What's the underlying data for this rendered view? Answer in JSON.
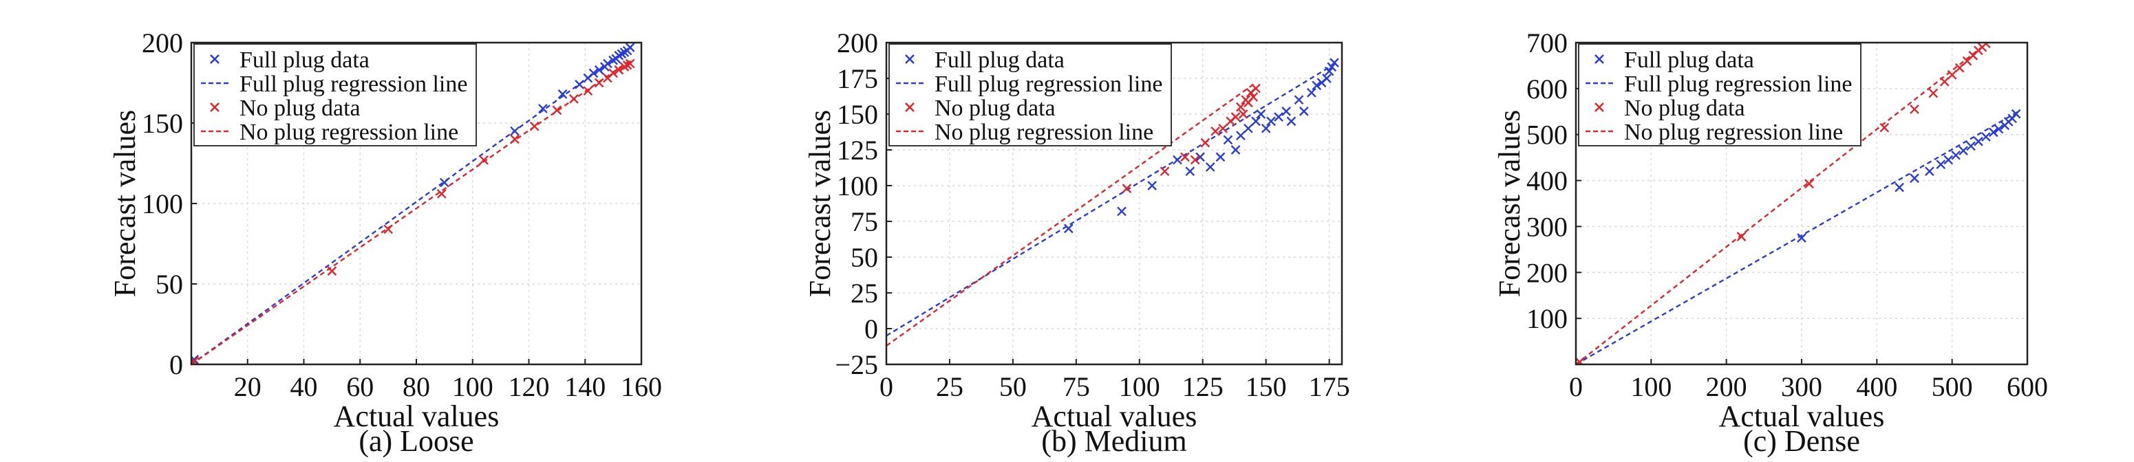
{
  "chart_data": [
    {
      "type": "scatter",
      "caption": "(a) Loose",
      "xlabel": "Actual values",
      "ylabel": "Forecast values",
      "xlim": [
        0,
        160
      ],
      "ylim": [
        0,
        200
      ],
      "xticks": [
        20,
        40,
        60,
        80,
        100,
        120,
        140,
        160
      ],
      "yticks": [
        0,
        50,
        100,
        150,
        200
      ],
      "grid": true,
      "legend_position": "top-left",
      "legend": [
        {
          "label": "Full plug data",
          "kind": "marker",
          "color": "#2a3cd6"
        },
        {
          "label": "Full plug regression line",
          "kind": "line",
          "color": "#2a3cd6"
        },
        {
          "label": "No plug data",
          "kind": "marker",
          "color": "#e0262c"
        },
        {
          "label": "No plug regression line",
          "kind": "line",
          "color": "#e0262c"
        }
      ],
      "series": [
        {
          "name": "Full plug data",
          "kind": "scatter",
          "color": "#2a3cd6",
          "x": [
            1,
            90,
            115,
            125,
            132,
            138,
            141,
            143,
            145,
            147,
            148,
            150,
            151,
            152,
            153,
            154,
            155,
            156
          ],
          "y": [
            3,
            113,
            145,
            159,
            168,
            174,
            178,
            181,
            183,
            185,
            187,
            189,
            190,
            192,
            193,
            194,
            195,
            197
          ]
        },
        {
          "name": "Full plug regression line",
          "kind": "line",
          "color": "#2a3cd6",
          "x": [
            0,
            156
          ],
          "y": [
            0,
            197
          ]
        },
        {
          "name": "No plug data",
          "kind": "scatter",
          "color": "#e0262c",
          "x": [
            1,
            50,
            70,
            89,
            104,
            115,
            122,
            130,
            136,
            141,
            145,
            148,
            150,
            152,
            154,
            155,
            156
          ],
          "y": [
            2,
            58,
            84,
            106,
            127,
            140,
            148,
            158,
            165,
            170,
            175,
            178,
            181,
            183,
            185,
            186,
            187
          ]
        },
        {
          "name": "No plug regression line",
          "kind": "line",
          "color": "#e0262c",
          "x": [
            0,
            156
          ],
          "y": [
            0,
            189
          ]
        }
      ]
    },
    {
      "type": "scatter",
      "caption": "(b) Medium",
      "xlabel": "Actual values",
      "ylabel": "Forecast values",
      "xlim": [
        0,
        180
      ],
      "ylim": [
        -25,
        200
      ],
      "xticks": [
        0,
        25,
        50,
        75,
        100,
        125,
        150,
        175
      ],
      "yticks": [
        -25,
        0,
        25,
        50,
        75,
        100,
        125,
        150,
        175,
        200
      ],
      "grid": true,
      "legend_position": "top-left",
      "legend": [
        {
          "label": "Full plug data",
          "kind": "marker",
          "color": "#2a3cd6"
        },
        {
          "label": "Full plug regression line",
          "kind": "line",
          "color": "#2a3cd6"
        },
        {
          "label": "No plug data",
          "kind": "marker",
          "color": "#e0262c"
        },
        {
          "label": "No plug regression line",
          "kind": "line",
          "color": "#e0262c"
        }
      ],
      "series": [
        {
          "name": "Full plug data",
          "kind": "scatter",
          "color": "#2a3cd6",
          "x": [
            72,
            93,
            105,
            115,
            120,
            124,
            128,
            132,
            135,
            138,
            140,
            143,
            146,
            148,
            150,
            152,
            155,
            158,
            160,
            163,
            165,
            168,
            170,
            172,
            174,
            175,
            176,
            177
          ],
          "y": [
            70,
            82,
            100,
            118,
            110,
            120,
            113,
            120,
            132,
            125,
            135,
            140,
            145,
            150,
            140,
            145,
            148,
            152,
            145,
            160,
            152,
            165,
            170,
            172,
            175,
            180,
            183,
            186
          ],
          "markers": 1
        },
        {
          "name": "Full plug regression line",
          "kind": "line",
          "color": "#2a3cd6",
          "x": [
            0,
            178
          ],
          "y": [
            -5,
            186
          ]
        },
        {
          "name": "No plug data",
          "kind": "scatter",
          "color": "#e0262c",
          "x": [
            95,
            110,
            118,
            122,
            126,
            130,
            133,
            136,
            138,
            140,
            141,
            142,
            143,
            144,
            145,
            146
          ],
          "y": [
            98,
            110,
            120,
            118,
            130,
            138,
            140,
            145,
            148,
            155,
            150,
            160,
            158,
            165,
            162,
            168
          ]
        },
        {
          "name": "No plug regression line",
          "kind": "line",
          "color": "#e0262c",
          "x": [
            0,
            146
          ],
          "y": [
            -12,
            172
          ]
        }
      ]
    },
    {
      "type": "scatter",
      "caption": "(c) Dense",
      "xlabel": "Actual values",
      "ylabel": "Forecast values",
      "xlim": [
        0,
        600
      ],
      "ylim": [
        0,
        700
      ],
      "xticks": [
        0,
        100,
        200,
        300,
        400,
        500,
        600
      ],
      "yticks": [
        100,
        200,
        300,
        400,
        500,
        600,
        700
      ],
      "grid": true,
      "legend_position": "top-left",
      "legend": [
        {
          "label": "Full plug data",
          "kind": "marker",
          "color": "#2a3cd6"
        },
        {
          "label": "Full plug regression line",
          "kind": "line",
          "color": "#2a3cd6"
        },
        {
          "label": "No plug data",
          "kind": "marker",
          "color": "#e0262c"
        },
        {
          "label": "No plug regression line",
          "kind": "line",
          "color": "#e0262c"
        }
      ],
      "series": [
        {
          "name": "Full plug data",
          "kind": "scatter",
          "color": "#2a3cd6",
          "x": [
            5,
            300,
            430,
            450,
            470,
            485,
            495,
            505,
            515,
            525,
            535,
            545,
            555,
            562,
            570,
            575,
            580,
            585
          ],
          "y": [
            5,
            275,
            385,
            405,
            420,
            435,
            445,
            455,
            465,
            475,
            485,
            495,
            505,
            512,
            520,
            528,
            535,
            545
          ]
        },
        {
          "name": "Full plug regression line",
          "kind": "line",
          "color": "#2a3cd6",
          "x": [
            0,
            588
          ],
          "y": [
            0,
            550
          ]
        },
        {
          "name": "No plug data",
          "kind": "scatter",
          "color": "#e0262c",
          "x": [
            5,
            220,
            310,
            410,
            450,
            475,
            490,
            500,
            510,
            520,
            528,
            535,
            540,
            545
          ],
          "y": [
            5,
            278,
            393,
            515,
            555,
            590,
            615,
            630,
            645,
            660,
            672,
            683,
            690,
            698
          ]
        },
        {
          "name": "No plug regression line",
          "kind": "line",
          "color": "#e0262c",
          "x": [
            0,
            555
          ],
          "y": [
            0,
            710
          ]
        }
      ]
    }
  ]
}
